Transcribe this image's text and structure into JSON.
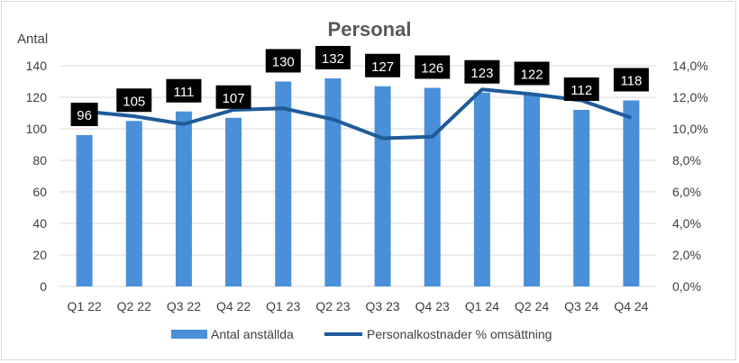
{
  "chart_data": {
    "type": "bar",
    "title": "Personal",
    "ylabel": "Antal",
    "ylim": [
      0,
      140
    ],
    "y_ticks": [
      "0",
      "20",
      "40",
      "60",
      "80",
      "100",
      "120",
      "140"
    ],
    "y2lim": [
      0,
      14
    ],
    "y2_ticks": [
      "0,0%",
      "2,0%",
      "4,0%",
      "6,0%",
      "8,0%",
      "10,0%",
      "12,0%",
      "14,0%"
    ],
    "categories": [
      "Q1 22",
      "Q2 22",
      "Q3 22",
      "Q4 22",
      "Q1 23",
      "Q2 23",
      "Q3 23",
      "Q4 23",
      "Q1 24",
      "Q2 24",
      "Q3 24",
      "Q4 24"
    ],
    "grid": true,
    "legend_position": "bottom",
    "series": [
      {
        "name": "Antal anställda",
        "type": "bar",
        "axis": "left",
        "color": "#4a90d9",
        "values": [
          96,
          105,
          111,
          107,
          130,
          132,
          127,
          126,
          123,
          122,
          112,
          118
        ],
        "labels": [
          "96",
          "105",
          "111",
          "107",
          "130",
          "132",
          "127",
          "126",
          "123",
          "122",
          "112",
          "118"
        ]
      },
      {
        "name": "Personalkostnader % omsättning",
        "type": "line",
        "axis": "right",
        "color": "#1f5b99",
        "values": [
          11.1,
          10.8,
          10.3,
          11.2,
          11.3,
          10.6,
          9.4,
          9.5,
          12.5,
          12.2,
          11.8,
          10.7
        ]
      }
    ]
  }
}
